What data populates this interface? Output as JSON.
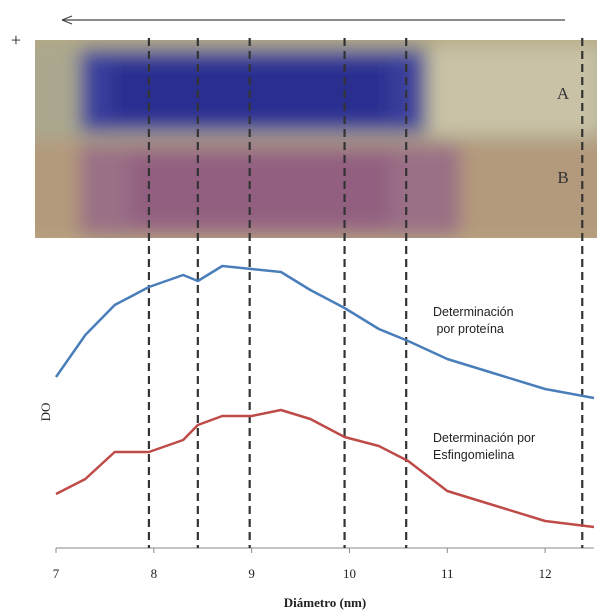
{
  "chart_data": {
    "type": "line",
    "x": [
      7,
      7.3,
      7.6,
      7.95,
      8.3,
      8.45,
      8.7,
      9,
      9.3,
      9.6,
      9.95,
      10.3,
      10.6,
      11,
      11.5,
      12,
      12.5
    ],
    "series": [
      {
        "name": [
          "Determinación",
          " por proteína"
        ],
        "color": "#4a7ebb",
        "values": [
          57,
          71,
          81,
          87,
          91,
          89,
          94,
          93,
          92,
          86,
          80,
          73,
          69,
          63,
          58,
          53,
          50
        ]
      },
      {
        "name": [
          "Determinación por",
          "Esfingomielina"
        ],
        "color": "#be4b48",
        "values": [
          18,
          23,
          32,
          32,
          36,
          41,
          44,
          44,
          46,
          43,
          37,
          34,
          29,
          19,
          14,
          9,
          7
        ]
      }
    ],
    "xlim": [
      7,
      12.5
    ],
    "ylim": [
      0,
      100
    ],
    "xticks": [
      7,
      8,
      9,
      10,
      11,
      12
    ],
    "xlabel": "Diámetro (nm)",
    "ylabel": "DO",
    "reference_lines": [
      7.95,
      8.45,
      8.98,
      9.95,
      10.58,
      12.38
    ],
    "gel_labels": [
      "A",
      "B"
    ],
    "polarity": "+"
  }
}
